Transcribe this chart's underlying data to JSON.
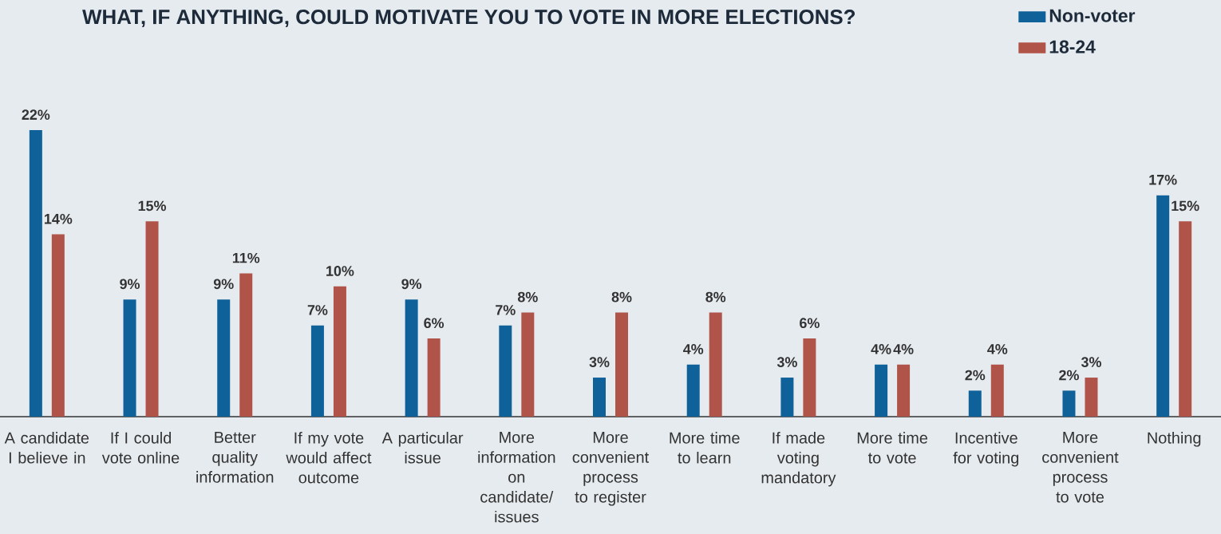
{
  "chart_data": {
    "type": "bar",
    "title": "WHAT, IF ANYTHING, COULD MOTIVATE YOU TO VOTE IN MORE ELECTIONS?",
    "categories": [
      "A candidate I believe in",
      "If I could vote online",
      "Better quality information",
      "If my vote would affect outcome",
      "A particular issue",
      "More information on candidate/ issues",
      "More convenient process to register",
      "More time to learn",
      "If made voting mandatory",
      "More time to vote",
      "Incentive for voting",
      "More convenient process to vote",
      "Nothing"
    ],
    "series": [
      {
        "name": "Non-voter",
        "color": "#0e6199",
        "values": [
          22,
          9,
          9,
          7,
          9,
          7,
          3,
          4,
          3,
          4,
          2,
          2,
          17
        ],
        "value_labels": [
          "22%",
          "9%",
          "9%",
          "7%",
          "9%",
          "7%",
          "3%",
          "4%",
          "3%",
          "4%",
          "2%",
          "2%",
          "17%"
        ]
      },
      {
        "name": "18-24",
        "color": "#b0544a",
        "values": [
          14,
          15,
          11,
          10,
          6,
          8,
          8,
          8,
          6,
          4,
          4,
          3,
          15
        ],
        "value_labels": [
          "14%",
          "15%",
          "11%",
          "10%",
          "6%",
          "8%",
          "8%",
          "8%",
          "6%",
          "4%",
          "4%",
          "3%",
          "15%"
        ]
      }
    ],
    "legend": "top right"
  }
}
